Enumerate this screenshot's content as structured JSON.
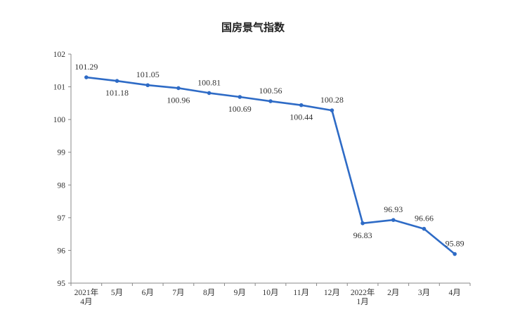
{
  "chart_data": {
    "type": "line",
    "title": "国房景气指数",
    "xlabel": "",
    "ylabel": "",
    "ylim": [
      95,
      102
    ],
    "yticks": [
      95,
      96,
      97,
      98,
      99,
      100,
      101,
      102
    ],
    "grid": false,
    "categories": [
      [
        "2021年",
        "4月"
      ],
      [
        "5月"
      ],
      [
        "6月"
      ],
      [
        "7月"
      ],
      [
        "8月"
      ],
      [
        "9月"
      ],
      [
        "10月"
      ],
      [
        "11月"
      ],
      [
        "12月"
      ],
      [
        "2022年",
        "1月"
      ],
      [
        "2月"
      ],
      [
        "3月"
      ],
      [
        "4月"
      ]
    ],
    "series": [
      {
        "values": [
          101.29,
          101.18,
          101.05,
          100.96,
          100.81,
          100.69,
          100.56,
          100.44,
          100.28,
          96.83,
          96.93,
          96.66,
          95.89
        ],
        "labels": [
          "101.29",
          "101.18",
          "101.05",
          "100.96",
          "100.81",
          "100.69",
          "100.56",
          "100.44",
          "100.28",
          "96.83",
          "96.93",
          "96.66",
          "95.89"
        ],
        "label_positions": [
          "above",
          "below",
          "above",
          "below",
          "above",
          "below",
          "above",
          "below",
          "above",
          "below",
          "above",
          "above",
          "above"
        ],
        "color": "#2e6bc6"
      }
    ]
  }
}
